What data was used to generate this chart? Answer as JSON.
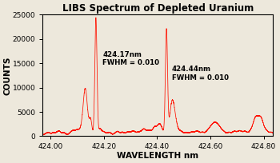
{
  "title": "LIBS Spectrum of Depleted Uranium",
  "xlabel": "WAVELENGTH nm",
  "ylabel": "COUNTS",
  "xlim": [
    423.97,
    424.835
  ],
  "ylim": [
    0,
    25000
  ],
  "xticks": [
    424.0,
    424.2,
    424.4,
    424.6,
    424.8
  ],
  "yticks": [
    0,
    5000,
    10000,
    15000,
    20000,
    25000
  ],
  "line_color": "#FF1100",
  "background_color": "#EDE8DC",
  "annotation1": "424.17nm\nFWHM = 0.010",
  "annotation2": "424.44nm\nFWHM = 0.010",
  "peak1_wl": 424.17,
  "peak1_height": 24000,
  "peak2_wl": 424.435,
  "peak2_height": 21500,
  "title_fontsize": 8.5,
  "label_fontsize": 7.5,
  "tick_fontsize": 6.5
}
